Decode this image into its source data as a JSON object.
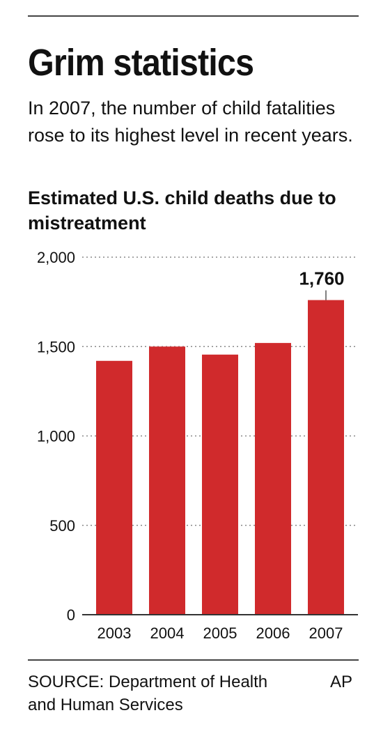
{
  "headline": "Grim statistics",
  "subhead": "In 2007, the number of child fatalities rose to its highest level in recent years.",
  "source": "SOURCE: Department of Health and Human Services",
  "credit": "AP",
  "colors": {
    "bar": "#d02a2c",
    "text": "#111111",
    "grid": "#888888"
  },
  "chart_data": {
    "type": "bar",
    "title": "Estimated U.S. child deaths due to mistreatment",
    "xlabel": "",
    "ylabel": "",
    "categories": [
      "2003",
      "2004",
      "2005",
      "2006",
      "2007"
    ],
    "values": [
      1420,
      1500,
      1455,
      1520,
      1760
    ],
    "ylim": [
      0,
      2000
    ],
    "yticks": [
      0,
      500,
      1000,
      1500,
      2000
    ],
    "ytick_labels": [
      "0",
      "500",
      "1,000",
      "1,500",
      "2,000"
    ],
    "grid": true,
    "annotation": {
      "category": "2007",
      "text": "1,760"
    }
  }
}
